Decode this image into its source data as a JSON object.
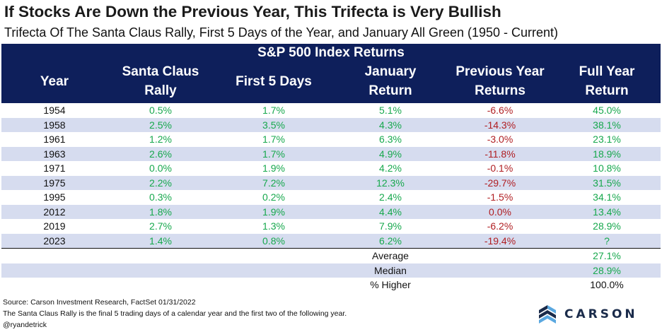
{
  "title": "If Stocks Are Down the Previous Year, This Trifecta is Very Bullish",
  "subtitle": "Trifecta Of The Santa Claus Rally, First 5 Days of the Year, and January All Green (1950 - Current)",
  "table": {
    "group_header": "S&P 500 Index Returns",
    "columns": [
      {
        "line1": "Year",
        "line2": ""
      },
      {
        "line1": "Santa Claus",
        "line2": "Rally"
      },
      {
        "line1": "First 5 Days",
        "line2": ""
      },
      {
        "line1": "January",
        "line2": "Return"
      },
      {
        "line1": "Previous Year",
        "line2": "Returns"
      },
      {
        "line1": "Full Year",
        "line2": "Return"
      }
    ],
    "rows": [
      [
        "1954",
        "0.5%",
        "1.7%",
        "5.1%",
        "-6.6%",
        "45.0%"
      ],
      [
        "1958",
        "2.5%",
        "3.5%",
        "4.3%",
        "-14.3%",
        "38.1%"
      ],
      [
        "1961",
        "1.2%",
        "1.7%",
        "6.3%",
        "-3.0%",
        "23.1%"
      ],
      [
        "1963",
        "2.6%",
        "1.7%",
        "4.9%",
        "-11.8%",
        "18.9%"
      ],
      [
        "1971",
        "0.0%",
        "1.9%",
        "4.2%",
        "-0.1%",
        "10.8%"
      ],
      [
        "1975",
        "2.2%",
        "7.2%",
        "12.3%",
        "-29.7%",
        "31.5%"
      ],
      [
        "1995",
        "0.3%",
        "0.2%",
        "2.4%",
        "-1.5%",
        "34.1%"
      ],
      [
        "2012",
        "1.8%",
        "1.9%",
        "4.4%",
        "0.0%",
        "13.4%"
      ],
      [
        "2019",
        "2.7%",
        "1.3%",
        "7.9%",
        "-6.2%",
        "28.9%"
      ],
      [
        "2023",
        "1.4%",
        "0.8%",
        "6.2%",
        "-19.4%",
        "?"
      ]
    ],
    "summary": [
      {
        "label": "Average",
        "value": "27.1%"
      },
      {
        "label": "Median",
        "value": "28.9%"
      },
      {
        "label": "% Higher",
        "value": "100.0%"
      }
    ]
  },
  "footer": {
    "source": "Source: Carson Investment Research, FactSet 01/31/2022",
    "note": "The Santa Claus Rally is the final 5 trading days of a calendar year and the first two of the following year.",
    "handle": "@ryandetrick"
  },
  "logo": {
    "text": "CARSON",
    "icon": "carson-chevron-logo-icon"
  },
  "colors": {
    "header_bg": "#0e1f5b",
    "row_shade": "#d6dcef",
    "positive": "#17a84d",
    "negative": "#b01e22"
  }
}
